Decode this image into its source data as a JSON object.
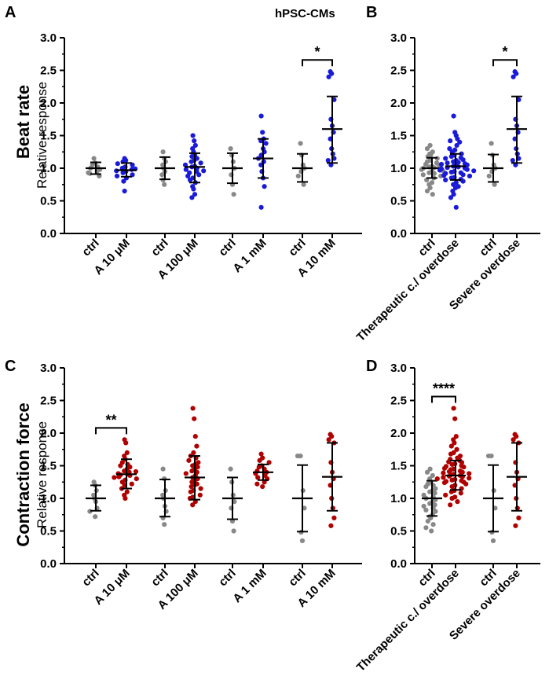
{
  "title": "hPSC-CMs",
  "colors": {
    "ctrl": "#888888",
    "blue": "#1a1adb",
    "red": "#b00000",
    "axis": "#000000"
  },
  "row_labels": [
    {
      "main": "Beat rate",
      "sub": "Relative response"
    },
    {
      "main": "Contraction force",
      "sub": "Relative response"
    }
  ],
  "chart_data": [
    {
      "panel": "A",
      "type": "scatter",
      "ylabel": "Relative response",
      "ylim": [
        0,
        3.0
      ],
      "yticks": [
        "0.0",
        "0.5",
        "1.0",
        "1.5",
        "2.0",
        "2.5",
        "3.0"
      ],
      "groups": [
        {
          "label": "ctrl",
          "color": "ctrl",
          "mean": 1.0,
          "sd_low": 0.91,
          "sd_high": 1.09,
          "points": [
            1.15,
            1.08,
            1.05,
            1.02,
            1.0,
            0.98,
            0.95,
            0.92,
            0.88,
            0.93
          ]
        },
        {
          "label": "A 10 μM",
          "color": "blue",
          "mean": 0.97,
          "sd_low": 0.87,
          "sd_high": 1.08,
          "points": [
            1.15,
            1.12,
            1.1,
            1.05,
            1.02,
            1.0,
            0.98,
            0.96,
            0.95,
            0.93,
            0.9,
            0.88,
            0.85,
            0.8,
            0.65,
            1.07,
            0.99
          ]
        },
        {
          "label": "ctrl",
          "color": "ctrl",
          "mean": 1.0,
          "sd_low": 0.83,
          "sd_high": 1.17,
          "points": [
            1.25,
            1.15,
            1.1,
            1.05,
            1.0,
            0.95,
            0.9,
            0.82,
            0.75
          ]
        },
        {
          "label": "A 100 μM",
          "color": "blue",
          "mean": 1.02,
          "sd_low": 0.78,
          "sd_high": 1.23,
          "points": [
            1.5,
            1.42,
            1.35,
            1.3,
            1.25,
            1.2,
            1.18,
            1.15,
            1.12,
            1.1,
            1.08,
            1.05,
            1.03,
            1.02,
            1.0,
            0.98,
            0.96,
            0.95,
            0.93,
            0.9,
            0.88,
            0.85,
            0.82,
            0.78,
            0.72,
            0.68,
            0.6,
            0.55
          ]
        },
        {
          "label": "ctrl",
          "color": "ctrl",
          "mean": 1.0,
          "sd_low": 0.77,
          "sd_high": 1.23,
          "points": [
            1.3,
            1.2,
            1.1,
            1.0,
            0.9,
            0.75,
            0.6
          ]
        },
        {
          "label": "A 1 mM",
          "color": "blue",
          "mean": 1.15,
          "sd_low": 0.85,
          "sd_high": 1.45,
          "points": [
            1.8,
            1.55,
            1.45,
            1.42,
            1.38,
            1.3,
            1.25,
            1.2,
            1.15,
            1.1,
            1.05,
            0.95,
            0.85,
            0.72,
            0.4
          ]
        },
        {
          "label": "ctrl",
          "color": "ctrl",
          "mean": 1.0,
          "sd_low": 0.79,
          "sd_high": 1.22,
          "points": [
            1.38,
            1.2,
            1.05,
            1.0,
            0.95,
            0.88,
            0.75
          ]
        },
        {
          "label": "A 10 mM",
          "color": "blue",
          "mean": 1.6,
          "sd_low": 1.08,
          "sd_high": 2.1,
          "points": [
            2.48,
            2.45,
            2.4,
            2.05,
            1.75,
            1.65,
            1.55,
            1.45,
            1.3,
            1.22,
            1.15,
            1.05,
            1.12
          ]
        }
      ],
      "significance": [
        {
          "from": 6,
          "to": 7,
          "label": "*"
        }
      ]
    },
    {
      "panel": "B",
      "type": "scatter",
      "ylabel": "Relative response",
      "ylim": [
        0,
        3.0
      ],
      "yticks": [
        "0.0",
        "0.5",
        "1.0",
        "1.5",
        "2.0",
        "2.5",
        "3.0"
      ],
      "groups": [
        {
          "label": "ctrl",
          "color": "ctrl",
          "mean": 1.0,
          "sd_low": 0.85,
          "sd_high": 1.16,
          "points": [
            1.35,
            1.3,
            1.25,
            1.22,
            1.2,
            1.18,
            1.15,
            1.12,
            1.1,
            1.08,
            1.06,
            1.05,
            1.03,
            1.02,
            1.01,
            1.0,
            0.99,
            0.98,
            0.96,
            0.95,
            0.93,
            0.92,
            0.9,
            0.88,
            0.85,
            0.82,
            0.78,
            0.75,
            0.7,
            0.65,
            0.6
          ]
        },
        {
          "label": "Therapeutic c./ overdose",
          "color": "blue",
          "mean": 1.03,
          "sd_low": 0.82,
          "sd_high": 1.22,
          "points": [
            1.8,
            1.55,
            1.5,
            1.45,
            1.42,
            1.4,
            1.35,
            1.3,
            1.28,
            1.25,
            1.22,
            1.2,
            1.18,
            1.16,
            1.15,
            1.13,
            1.12,
            1.1,
            1.09,
            1.08,
            1.07,
            1.06,
            1.05,
            1.04,
            1.03,
            1.02,
            1.01,
            1.0,
            0.99,
            0.98,
            0.97,
            0.96,
            0.95,
            0.94,
            0.93,
            0.92,
            0.9,
            0.89,
            0.88,
            0.86,
            0.85,
            0.83,
            0.82,
            0.8,
            0.78,
            0.75,
            0.72,
            0.7,
            0.65,
            0.6,
            0.55,
            0.4
          ]
        },
        {
          "label": "ctrl",
          "color": "ctrl",
          "mean": 1.0,
          "sd_low": 0.79,
          "sd_high": 1.21,
          "points": [
            1.38,
            1.2,
            1.05,
            1.0,
            0.95,
            0.88,
            0.75
          ]
        },
        {
          "label": "Severe overdose",
          "color": "blue",
          "mean": 1.6,
          "sd_low": 1.08,
          "sd_high": 2.1,
          "points": [
            2.48,
            2.45,
            2.4,
            2.05,
            1.75,
            1.65,
            1.55,
            1.45,
            1.3,
            1.22,
            1.15,
            1.05,
            1.12
          ]
        }
      ],
      "significance": [
        {
          "from": 2,
          "to": 3,
          "label": "*"
        }
      ]
    },
    {
      "panel": "C",
      "type": "scatter",
      "ylabel": "Relative response",
      "ylim": [
        0,
        3.0
      ],
      "yticks": [
        "0.0",
        "0.5",
        "1.0",
        "1.5",
        "2.0",
        "2.5",
        "3.0"
      ],
      "groups": [
        {
          "label": "ctrl",
          "color": "ctrl",
          "mean": 1.0,
          "sd_low": 0.81,
          "sd_high": 1.2,
          "points": [
            1.25,
            1.2,
            1.12,
            1.05,
            1.0,
            0.95,
            0.85,
            0.8,
            0.72
          ]
        },
        {
          "label": "A 10 μM",
          "color": "red",
          "mean": 1.37,
          "sd_low": 1.15,
          "sd_high": 1.6,
          "points": [
            1.9,
            1.85,
            1.7,
            1.65,
            1.6,
            1.55,
            1.52,
            1.5,
            1.48,
            1.45,
            1.42,
            1.4,
            1.38,
            1.37,
            1.36,
            1.35,
            1.33,
            1.3,
            1.28,
            1.25,
            1.22,
            1.2,
            1.15,
            1.1,
            1.05,
            1.0,
            1.32,
            1.41
          ]
        },
        {
          "label": "ctrl",
          "color": "ctrl",
          "mean": 1.0,
          "sd_low": 0.72,
          "sd_high": 1.29,
          "points": [
            1.45,
            1.3,
            1.12,
            1.05,
            1.0,
            0.88,
            0.8,
            0.7,
            0.6
          ]
        },
        {
          "label": "A 100 μM",
          "color": "red",
          "mean": 1.32,
          "sd_low": 0.98,
          "sd_high": 1.65,
          "points": [
            2.38,
            2.22,
            1.95,
            1.8,
            1.7,
            1.65,
            1.62,
            1.58,
            1.55,
            1.52,
            1.5,
            1.48,
            1.45,
            1.42,
            1.4,
            1.38,
            1.35,
            1.32,
            1.3,
            1.28,
            1.25,
            1.22,
            1.2,
            1.18,
            1.15,
            1.12,
            1.1,
            1.05,
            1.02,
            1.0,
            0.95,
            0.9
          ]
        },
        {
          "label": "ctrl",
          "color": "ctrl",
          "mean": 1.0,
          "sd_low": 0.68,
          "sd_high": 1.32,
          "points": [
            1.45,
            1.25,
            1.05,
            0.95,
            0.85,
            0.65,
            0.5
          ]
        },
        {
          "label": "A 1 mM",
          "color": "red",
          "mean": 1.4,
          "sd_low": 1.28,
          "sd_high": 1.52,
          "points": [
            1.68,
            1.62,
            1.58,
            1.55,
            1.5,
            1.48,
            1.45,
            1.42,
            1.4,
            1.38,
            1.35,
            1.32,
            1.3,
            1.25,
            1.22,
            1.18
          ]
        },
        {
          "label": "ctrl",
          "color": "ctrl",
          "mean": 1.0,
          "sd_low": 0.49,
          "sd_high": 1.51,
          "points": [
            1.65,
            1.65,
            1.12,
            0.85,
            0.48,
            0.35
          ]
        },
        {
          "label": "A 10 mM",
          "color": "red",
          "mean": 1.33,
          "sd_low": 0.81,
          "sd_high": 1.85,
          "points": [
            1.98,
            1.95,
            1.9,
            1.85,
            1.55,
            1.4,
            1.3,
            1.2,
            1.0,
            0.85,
            0.7,
            0.58
          ]
        }
      ],
      "significance": [
        {
          "from": 0,
          "to": 1,
          "label": "**"
        }
      ]
    },
    {
      "panel": "D",
      "type": "scatter",
      "ylabel": "Relative response",
      "ylim": [
        0,
        3.0
      ],
      "yticks": [
        "0.0",
        "0.5",
        "1.0",
        "1.5",
        "2.0",
        "2.5",
        "3.0"
      ],
      "groups": [
        {
          "label": "ctrl",
          "color": "ctrl",
          "mean": 1.0,
          "sd_low": 0.73,
          "sd_high": 1.27,
          "points": [
            1.45,
            1.4,
            1.35,
            1.3,
            1.25,
            1.22,
            1.2,
            1.18,
            1.15,
            1.12,
            1.1,
            1.08,
            1.05,
            1.02,
            1.0,
            0.98,
            0.95,
            0.92,
            0.9,
            0.88,
            0.85,
            0.82,
            0.8,
            0.75,
            0.72,
            0.7,
            0.65,
            0.6,
            0.55,
            0.5
          ]
        },
        {
          "label": "Therapeutic c./ overdose",
          "color": "red",
          "mean": 1.35,
          "sd_low": 1.13,
          "sd_high": 1.58,
          "points": [
            2.38,
            2.22,
            1.95,
            1.9,
            1.85,
            1.8,
            1.75,
            1.7,
            1.68,
            1.65,
            1.62,
            1.6,
            1.58,
            1.56,
            1.55,
            1.53,
            1.52,
            1.5,
            1.49,
            1.48,
            1.46,
            1.45,
            1.44,
            1.42,
            1.41,
            1.4,
            1.39,
            1.38,
            1.37,
            1.36,
            1.35,
            1.34,
            1.33,
            1.32,
            1.31,
            1.3,
            1.29,
            1.28,
            1.27,
            1.26,
            1.25,
            1.24,
            1.22,
            1.2,
            1.18,
            1.15,
            1.12,
            1.1,
            1.08,
            1.05,
            1.02,
            1.0,
            0.95,
            0.9
          ]
        },
        {
          "label": "ctrl",
          "color": "ctrl",
          "mean": 1.0,
          "sd_low": 0.49,
          "sd_high": 1.51,
          "points": [
            1.65,
            1.65,
            1.12,
            0.85,
            0.48,
            0.35
          ]
        },
        {
          "label": "Severe overdose",
          "color": "red",
          "mean": 1.33,
          "sd_low": 0.81,
          "sd_high": 1.85,
          "points": [
            1.98,
            1.95,
            1.9,
            1.85,
            1.55,
            1.4,
            1.3,
            1.2,
            1.0,
            0.85,
            0.7,
            0.58
          ]
        }
      ],
      "significance": [
        {
          "from": 0,
          "to": 1,
          "label": "****"
        }
      ]
    }
  ]
}
